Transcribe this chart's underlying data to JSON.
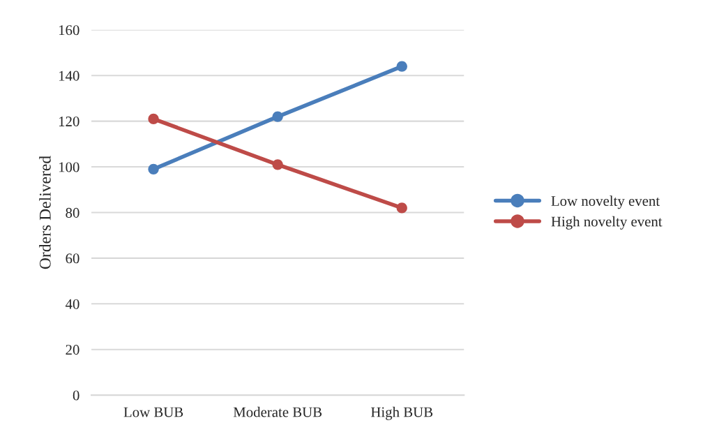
{
  "chart_data": {
    "type": "line",
    "ylabel": "Orders Delivered",
    "categories": [
      "Low BUB",
      "Moderate BUB",
      "High BUB"
    ],
    "series": [
      {
        "name": "Low novelty event",
        "color": "#4a7ebb",
        "values": [
          99,
          122,
          144
        ]
      },
      {
        "name": "High novelty event",
        "color": "#be4b48",
        "values": [
          121,
          101,
          82
        ]
      }
    ],
    "ylim": [
      0,
      160
    ],
    "yticks": [
      0,
      20,
      40,
      60,
      80,
      100,
      120,
      140,
      160
    ],
    "grid": "y",
    "legend": "right",
    "marker": "circle",
    "line_style": "solid"
  }
}
